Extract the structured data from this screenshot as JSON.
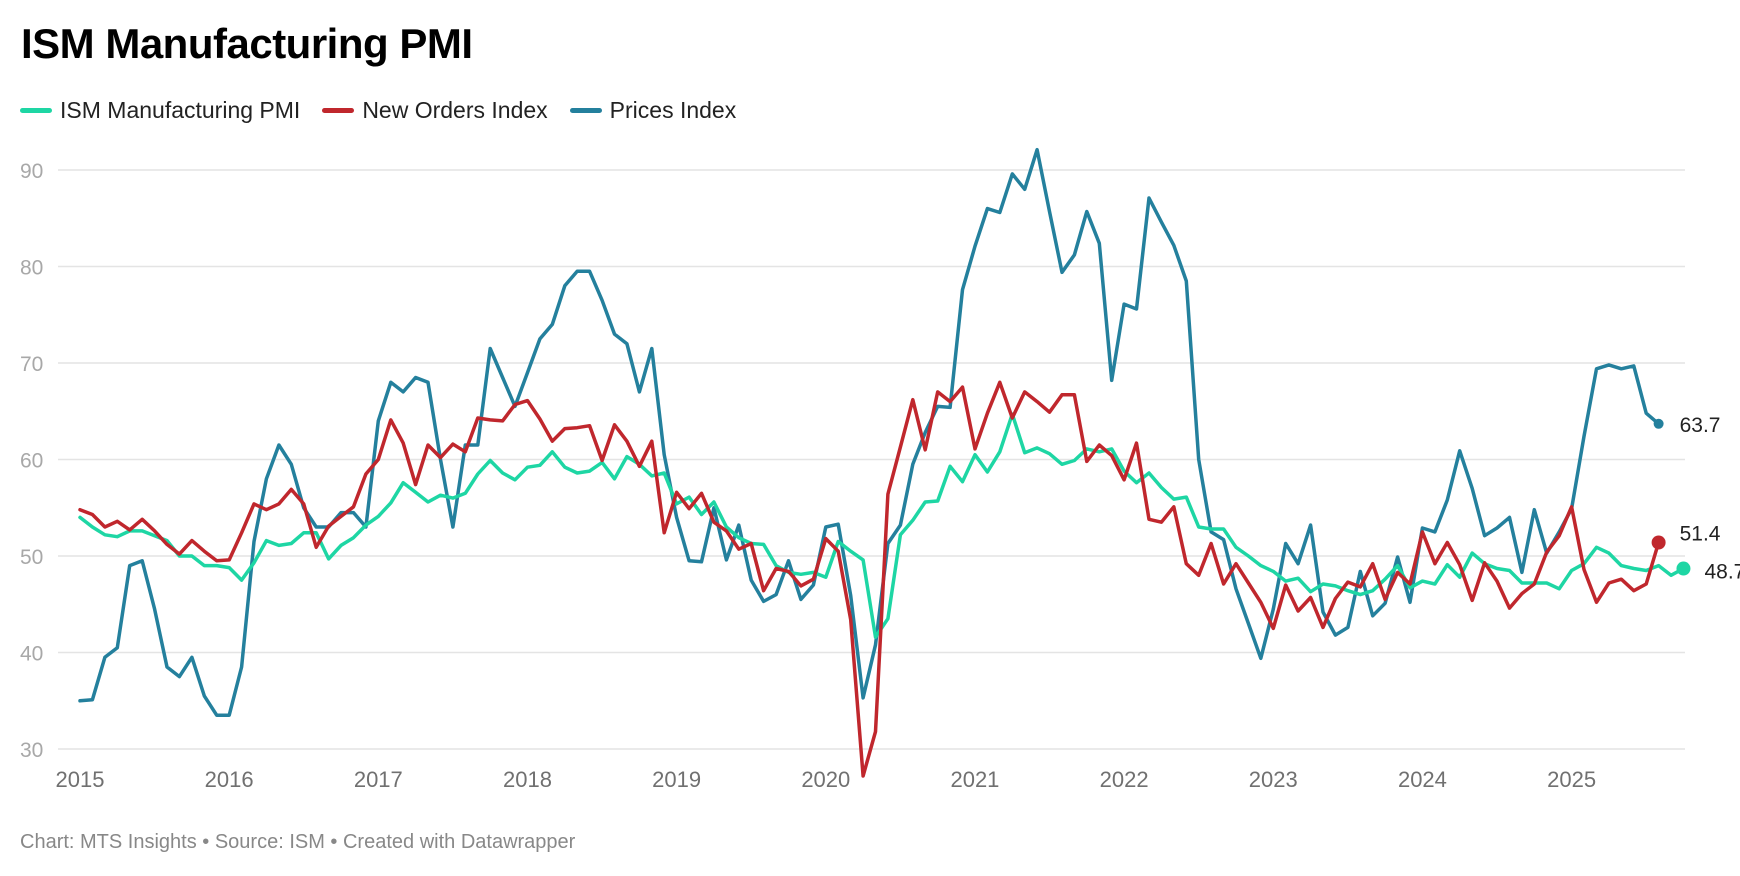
{
  "chart_data": {
    "type": "line",
    "title": "ISM Manufacturing PMI",
    "xlabel": "",
    "ylabel": "",
    "ylim": [
      30,
      90
    ],
    "yticks": [
      30,
      40,
      50,
      60,
      70,
      80,
      90
    ],
    "xticks": [
      "2015",
      "2016",
      "2017",
      "2018",
      "2019",
      "2020",
      "2021",
      "2022",
      "2023",
      "2024",
      "2025"
    ],
    "x_start": "2015-01",
    "x_end": "2025-08",
    "frequency": "monthly",
    "grid": true,
    "legend_position": "top-left",
    "series": [
      {
        "name": "ISM Manufacturing PMI",
        "color": "#1ed6a4",
        "end_label": "48.7",
        "values": [
          54.0,
          53.0,
          52.2,
          52.0,
          52.6,
          52.6,
          52.1,
          51.6,
          50.0,
          50.0,
          49.0,
          49.0,
          48.8,
          47.5,
          49.3,
          51.6,
          51.1,
          51.3,
          52.4,
          52.4,
          49.7,
          51.1,
          51.9,
          53.2,
          54.1,
          55.5,
          57.6,
          56.6,
          55.6,
          56.3,
          56.0,
          56.5,
          58.5,
          59.9,
          58.6,
          57.9,
          59.2,
          59.4,
          60.8,
          59.2,
          58.6,
          58.8,
          59.7,
          58.0,
          60.3,
          59.5,
          58.3,
          58.6,
          55.4,
          56.1,
          54.3,
          55.6,
          53.0,
          51.9,
          51.3,
          51.2,
          49.0,
          48.3,
          48.1,
          48.3,
          47.8,
          51.5,
          50.5,
          49.6,
          41.6,
          43.5,
          52.2,
          53.7,
          55.6,
          55.7,
          59.3,
          57.7,
          60.5,
          58.7,
          60.8,
          64.7,
          60.7,
          61.2,
          60.6,
          59.5,
          59.9,
          61.1,
          60.8,
          61.1,
          58.8,
          57.6,
          58.6,
          57.1,
          55.9,
          56.1,
          53.0,
          52.8,
          52.8,
          50.9,
          50.0,
          49.0,
          48.4,
          47.4,
          47.7,
          46.3,
          47.1,
          46.9,
          46.4,
          46.0,
          46.4,
          47.6,
          49.0,
          46.7,
          47.4,
          47.1,
          49.1,
          47.8,
          50.3,
          49.2,
          48.7,
          48.5,
          47.2,
          47.2,
          47.2,
          46.6,
          48.5,
          49.2,
          50.9,
          50.3,
          49.0,
          48.7,
          48.5,
          49.0,
          48.0,
          48.7
        ]
      },
      {
        "name": "New Orders Index",
        "color": "#c0272d",
        "end_label": "51.4",
        "values": [
          54.8,
          54.3,
          53.0,
          53.6,
          52.7,
          53.8,
          52.6,
          51.2,
          50.2,
          51.6,
          50.5,
          49.5,
          49.6,
          52.4,
          55.4,
          54.8,
          55.4,
          56.9,
          55.4,
          50.9,
          53.1,
          54.1,
          55.1,
          58.5,
          60.0,
          64.1,
          61.7,
          57.4,
          61.5,
          60.2,
          61.6,
          60.8,
          64.3,
          64.1,
          64.0,
          65.7,
          66.1,
          64.2,
          61.9,
          63.2,
          63.3,
          63.5,
          59.9,
          63.6,
          61.9,
          59.3,
          61.9,
          52.4,
          56.6,
          54.9,
          56.5,
          53.5,
          52.6,
          50.7,
          51.3,
          46.4,
          48.7,
          48.4,
          46.9,
          47.6,
          51.8,
          50.5,
          43.4,
          27.2,
          31.8,
          56.4,
          61.3,
          66.2,
          61.0,
          67.0,
          66.0,
          67.5,
          61.1,
          64.8,
          68.0,
          64.3,
          67.0,
          66.0,
          64.9,
          66.7,
          66.7,
          59.8,
          61.5,
          60.4,
          57.9,
          61.7,
          53.8,
          53.5,
          55.1,
          49.2,
          48.0,
          51.3,
          47.1,
          49.2,
          47.2,
          45.2,
          42.5,
          47.0,
          44.3,
          45.7,
          42.6,
          45.6,
          47.3,
          46.8,
          49.2,
          45.5,
          48.3,
          47.1,
          52.5,
          49.2,
          51.4,
          49.1,
          45.4,
          49.3,
          47.4,
          44.6,
          46.1,
          47.1,
          50.4,
          52.1,
          55.1,
          48.6,
          45.2,
          47.2,
          47.6,
          46.4,
          47.1,
          51.4
        ]
      },
      {
        "name": "Prices Index",
        "color": "#24809d",
        "end_label": "63.7",
        "values": [
          35.0,
          35.1,
          39.5,
          40.5,
          49.0,
          49.5,
          44.5,
          38.5,
          37.5,
          39.5,
          35.5,
          33.5,
          33.5,
          38.5,
          51.5,
          58.0,
          61.5,
          59.5,
          55.0,
          53.0,
          53.0,
          54.5,
          54.5,
          53.0,
          64.0,
          68.0,
          67.0,
          68.5,
          68.0,
          60.0,
          53.0,
          61.5,
          61.5,
          71.5,
          68.5,
          65.5,
          69.0,
          72.5,
          74.0,
          78.0,
          79.5,
          79.5,
          76.5,
          73.0,
          72.0,
          67.0,
          71.5,
          60.5,
          54.0,
          49.5,
          49.4,
          55.0,
          49.6,
          53.2,
          47.5,
          45.3,
          46.0,
          49.5,
          45.5,
          47.0,
          53.0,
          53.3,
          45.9,
          35.3,
          40.8,
          51.3,
          53.2,
          59.5,
          62.8,
          65.5,
          65.4,
          77.6,
          82.1,
          86.0,
          85.6,
          89.6,
          88.0,
          92.1,
          85.7,
          79.4,
          81.2,
          85.7,
          82.4,
          68.2,
          76.1,
          75.6,
          87.1,
          84.6,
          82.2,
          78.5,
          60.0,
          52.5,
          51.7,
          46.6,
          43.0,
          39.4,
          44.5,
          51.3,
          49.2,
          53.2,
          44.2,
          41.8,
          42.6,
          48.4,
          43.8,
          45.1,
          49.9,
          45.2,
          52.9,
          52.5,
          55.8,
          60.9,
          57.0,
          52.1,
          52.9,
          54.0,
          48.3,
          54.8,
          50.3,
          52.5,
          54.9,
          62.4,
          69.4,
          69.8,
          69.4,
          69.7,
          64.8,
          63.7
        ]
      }
    ],
    "footer": "Chart: MTS Insights • Source: ISM • Created with Datawrapper"
  }
}
